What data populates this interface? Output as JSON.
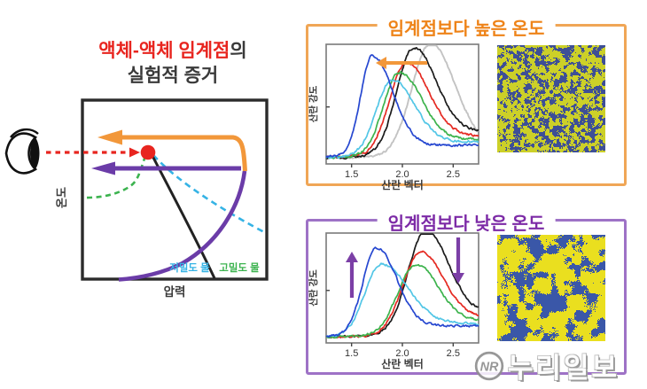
{
  "left": {
    "title_red": "액체-액체 임계점",
    "title_suffix": "의",
    "title_line2": "실험적 증거",
    "diagram": {
      "x_axis_label": "압력",
      "y_axis_label": "온도",
      "low_density_label": "저밀도 물",
      "low_density_color": "#35b3e5",
      "high_density_label": "고밀도 물",
      "high_density_color": "#3cb34f"
    }
  },
  "panels": [
    {
      "border_color": "#f0a656",
      "title_color": "#ee8318",
      "speckle": {
        "yellow": "#ccd028",
        "blue": "#3e4f96",
        "grain": "fine"
      }
    },
    {
      "border_color": "#9e72c6",
      "title_color": "#7c2aa6",
      "speckle": {
        "yellow": "#eadf1f",
        "blue": "#3a57a8",
        "grain": "coarse"
      }
    }
  ],
  "chart_data": [
    {
      "type": "line",
      "title": "임계점보다 높은 온도",
      "xlabel": "산란 벡터",
      "ylabel": "산란 강도",
      "xlim": [
        1.25,
        2.75
      ],
      "xticks": [
        "1.5",
        "2.0",
        "2.5"
      ],
      "xtick_values": [
        1.5,
        2.0,
        2.5
      ],
      "ylim": [
        0,
        1
      ],
      "grid": false,
      "legend": "none",
      "arrows": [
        {
          "direction": "left",
          "color": "#f2973a"
        }
      ],
      "series": [
        {
          "name": "gray",
          "color": "#c3c3c3",
          "peak_x": 2.27,
          "peak_height": 0.9,
          "width_left": 0.18,
          "width_right": 0.24,
          "tail": 0.1
        },
        {
          "name": "black",
          "color": "#1b1b1b",
          "peak_x": 2.1,
          "peak_height": 0.8,
          "width_left": 0.16,
          "width_right": 0.22,
          "tail": 0.22
        },
        {
          "name": "red",
          "color": "#e52a22",
          "peak_x": 2.03,
          "peak_height": 0.7,
          "width_left": 0.16,
          "width_right": 0.22,
          "tail": 0.18
        },
        {
          "name": "green",
          "color": "#3db34d",
          "peak_x": 1.96,
          "peak_height": 0.63,
          "width_left": 0.15,
          "width_right": 0.22,
          "tail": 0.15
        },
        {
          "name": "cyan",
          "color": "#52c6e6",
          "peak_x": 1.89,
          "peak_height": 0.58,
          "width_left": 0.15,
          "width_right": 0.22,
          "tail": 0.13
        },
        {
          "name": "blue",
          "color": "#2647d0",
          "peak_x": 1.7,
          "peak_height": 0.8,
          "width_left": 0.11,
          "width_right": 0.2,
          "tail": 0.1
        }
      ]
    },
    {
      "type": "line",
      "title": "임계점보다 낮은 온도",
      "xlabel": "산란 벡터",
      "ylabel": "산란 강도",
      "xlim": [
        1.25,
        2.75
      ],
      "xticks": [
        "1.5",
        "2.0",
        "2.5"
      ],
      "xtick_values": [
        1.5,
        2.0,
        2.5
      ],
      "ylim": [
        0,
        1
      ],
      "grid": false,
      "legend": "none",
      "arrows": [
        {
          "direction": "up",
          "color": "#7b3fa6"
        },
        {
          "direction": "down",
          "color": "#7b3fa6"
        }
      ],
      "series": [
        {
          "name": "black",
          "color": "#1b1b1b",
          "peak_x": 2.22,
          "peak_height": 0.86,
          "width_left": 0.17,
          "width_right": 0.22,
          "tail": 0.22
        },
        {
          "name": "red",
          "color": "#e52a22",
          "peak_x": 2.17,
          "peak_height": 0.68,
          "width_left": 0.17,
          "width_right": 0.22,
          "tail": 0.18
        },
        {
          "name": "green",
          "color": "#3db34d",
          "peak_x": 2.12,
          "peak_height": 0.58,
          "width_left": 0.17,
          "width_right": 0.22,
          "tail": 0.15
        },
        {
          "name": "cyan",
          "color": "#52c6e6",
          "peak_x": 1.78,
          "peak_height": 0.6,
          "width_left": 0.15,
          "width_right": 0.26,
          "tail": 0.12
        },
        {
          "name": "blue",
          "color": "#2647d0",
          "peak_x": 1.74,
          "peak_height": 0.76,
          "width_left": 0.13,
          "width_right": 0.2,
          "tail": 0.1
        }
      ]
    }
  ],
  "watermark": {
    "logo": "NR",
    "text": "누리일보"
  },
  "colors": {
    "red": "#e8251f",
    "orange": "#f2973a",
    "orange_border": "#f0a656",
    "orange_title": "#ee8318",
    "purple": "#6b3ca8",
    "purple_border": "#9e72c6",
    "purple_title": "#7c2aa6",
    "cyan": "#35b3e5",
    "green": "#3cb34f",
    "ink": "#3a3a3a"
  }
}
